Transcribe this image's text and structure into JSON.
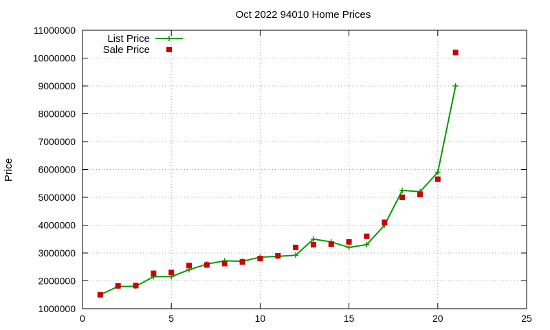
{
  "chart_data": {
    "type": "line",
    "title": "Oct 2022 94010 Home Prices",
    "xlabel": "",
    "ylabel": "Price",
    "xlim": [
      0,
      25
    ],
    "ylim": [
      1000000,
      11000000
    ],
    "xticks": [
      0,
      5,
      10,
      15,
      20,
      25
    ],
    "yticks": [
      1000000,
      2000000,
      3000000,
      4000000,
      5000000,
      6000000,
      7000000,
      8000000,
      9000000,
      10000000,
      11000000
    ],
    "grid": true,
    "legend_position": "top-left",
    "series": [
      {
        "name": "List Price",
        "style": "linespoints",
        "marker": "plus",
        "color": "#009900",
        "x": [
          1,
          2,
          3,
          4,
          5,
          6,
          7,
          8,
          9,
          10,
          11,
          12,
          13,
          14,
          15,
          16,
          17,
          18,
          19,
          20,
          21
        ],
        "y": [
          1500000,
          1800000,
          1800000,
          2150000,
          2150000,
          2400000,
          2600000,
          2720000,
          2700000,
          2850000,
          2880000,
          2920000,
          3500000,
          3400000,
          3200000,
          3300000,
          4000000,
          5250000,
          5200000,
          5900000,
          9000000
        ]
      },
      {
        "name": "Sale Price",
        "style": "points",
        "marker": "square",
        "color": "#cc0000",
        "x": [
          1,
          2,
          3,
          4,
          5,
          6,
          7,
          8,
          9,
          10,
          11,
          12,
          13,
          14,
          15,
          16,
          17,
          18,
          19,
          20,
          21
        ],
        "y": [
          1500000,
          1820000,
          1830000,
          2270000,
          2300000,
          2550000,
          2570000,
          2620000,
          2680000,
          2800000,
          2900000,
          3200000,
          3300000,
          3320000,
          3400000,
          3600000,
          4100000,
          5000000,
          5100000,
          5650000,
          10200000
        ]
      }
    ]
  }
}
